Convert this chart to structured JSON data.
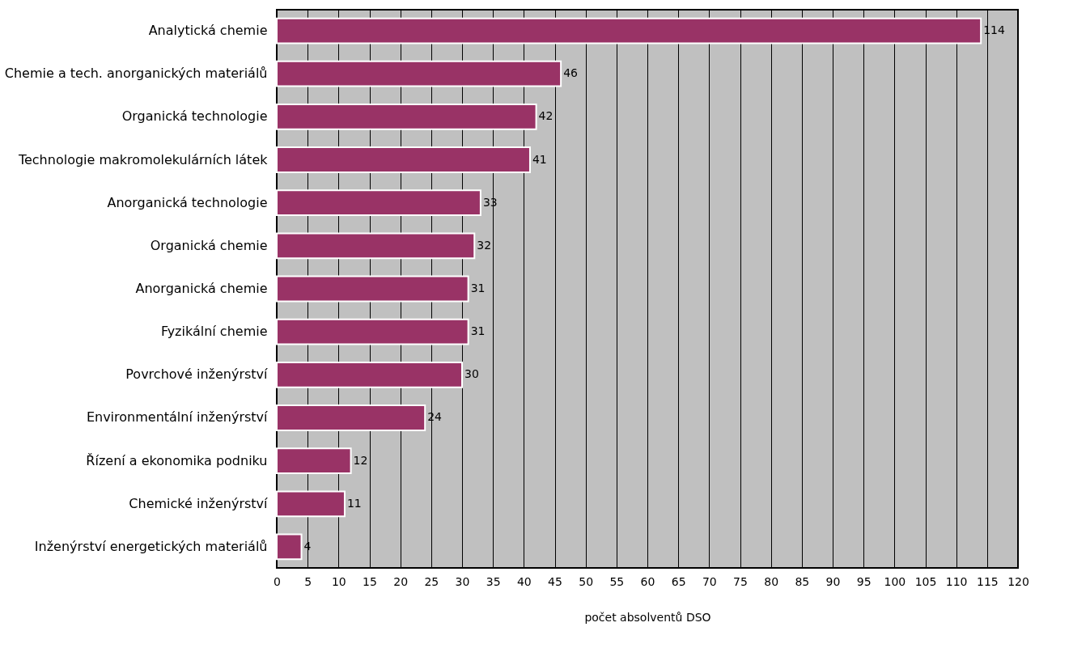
{
  "chart_data": {
    "type": "bar",
    "orientation": "horizontal",
    "xlabel": "počet absolventů DSO",
    "categories": [
      "Analytická chemie",
      "Chemie a tech. anorganických materiálů",
      "Organická technologie",
      "Technologie makromolekulárních látek",
      "Anorganická technologie",
      "Organická chemie",
      "Anorganická chemie",
      "Fyzikální chemie",
      "Povrchové inženýrství",
      "Environmentální inženýrství",
      "Řízení a ekonomika podniku",
      "Chemické inženýrství",
      "Inženýrství energetických materiálů"
    ],
    "values": [
      114,
      46,
      42,
      41,
      33,
      32,
      31,
      31,
      30,
      24,
      12,
      11,
      4
    ],
    "color": "#993366",
    "xlim": [
      0,
      120
    ],
    "xticks": [
      0,
      5,
      10,
      15,
      20,
      25,
      30,
      35,
      40,
      45,
      50,
      55,
      60,
      65,
      70,
      75,
      80,
      85,
      90,
      95,
      100,
      105,
      110,
      115,
      120
    ],
    "grid": "x",
    "data_labels": true
  }
}
